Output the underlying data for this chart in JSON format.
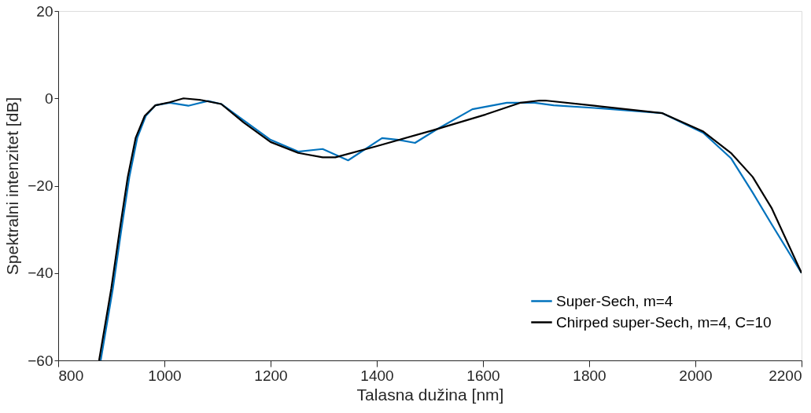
{
  "chart_data": {
    "type": "line",
    "xlabel": "Talasna dužina [nm]",
    "ylabel": "Spektralni intenzitet [dB]",
    "xlim": [
      800,
      2200
    ],
    "ylim": [
      -60,
      20
    ],
    "xticks": [
      800,
      1000,
      1200,
      1400,
      1600,
      1800,
      2000,
      2200
    ],
    "yticks": [
      -60,
      -40,
      -20,
      0,
      20
    ],
    "grid": false,
    "legend": "bottom right",
    "line_style": "solid",
    "marker": "none",
    "series": [
      {
        "name": "Super-Sech, m=4",
        "color": "#0072bd",
        "x": [
          880,
          903,
          919,
          934,
          949,
          965,
          983,
          1010,
          1045,
          1082,
          1107,
          1149,
          1200,
          1252,
          1298,
          1346,
          1410,
          1441,
          1472,
          1513,
          1580,
          1645,
          1697,
          1733,
          1810,
          1938,
          2015,
          2067,
          2108,
          2144,
          2200
        ],
        "values": [
          -60,
          -43.5,
          -30,
          -18,
          -9,
          -4,
          -1.6,
          -1,
          -1.7,
          -0.6,
          -1.3,
          -5,
          -9.5,
          -12.2,
          -11.6,
          -14.2,
          -9.1,
          -9.5,
          -10.2,
          -7.1,
          -2.5,
          -1,
          -1,
          -1.6,
          -2.2,
          -3.4,
          -7.9,
          -13.7,
          -21.6,
          -28.9,
          -40
        ]
      },
      {
        "name": "Chirped super-Sech, m=4, C=10",
        "color": "#000000",
        "x": [
          877,
          900,
          916,
          931,
          946,
          963,
          983,
          1010,
          1036,
          1070,
          1107,
          1149,
          1200,
          1252,
          1298,
          1322,
          1398,
          1506,
          1605,
          1671,
          1707,
          1717,
          1810,
          1938,
          2015,
          2067,
          2108,
          2144,
          2200
        ],
        "values": [
          -60,
          -43.5,
          -30,
          -18,
          -9,
          -4,
          -1.6,
          -0.9,
          0,
          -0.4,
          -1.3,
          -5.5,
          -10,
          -12.5,
          -13.5,
          -13.5,
          -11,
          -7.3,
          -3.7,
          -1,
          -0.5,
          -0.5,
          -1.7,
          -3.4,
          -7.6,
          -12.5,
          -18,
          -25.2,
          -40
        ]
      }
    ]
  }
}
